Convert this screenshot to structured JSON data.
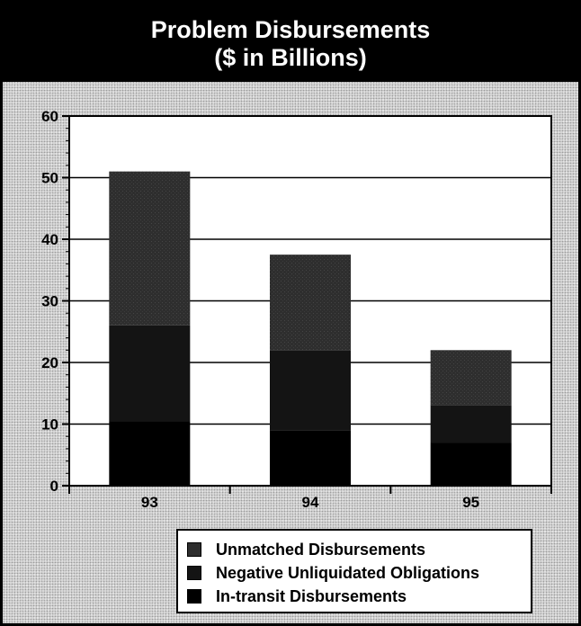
{
  "chart_data": {
    "type": "bar",
    "stacked": true,
    "title": "Problem Disbursements",
    "subtitle": "($ in Billions)",
    "xlabel": "",
    "ylabel": "",
    "categories": [
      "93",
      "94",
      "95"
    ],
    "ylim": [
      0,
      60
    ],
    "yticks": [
      "0",
      "10",
      "20",
      "30",
      "40",
      "50",
      "60"
    ],
    "grid": true,
    "legend_position": "bottom",
    "series": [
      {
        "name": "In-transit Disbursements",
        "values": [
          10.5,
          9.0,
          7.0
        ],
        "color": "#000000"
      },
      {
        "name": "Negative Unliquidated Obligations",
        "values": [
          15.5,
          13.0,
          6.0
        ],
        "color": "#141414"
      },
      {
        "name": "Unmatched Disbursements",
        "values": [
          25.0,
          15.5,
          9.0
        ],
        "color": "#2e2e2e"
      }
    ],
    "legend_order": [
      2,
      1,
      0
    ]
  }
}
